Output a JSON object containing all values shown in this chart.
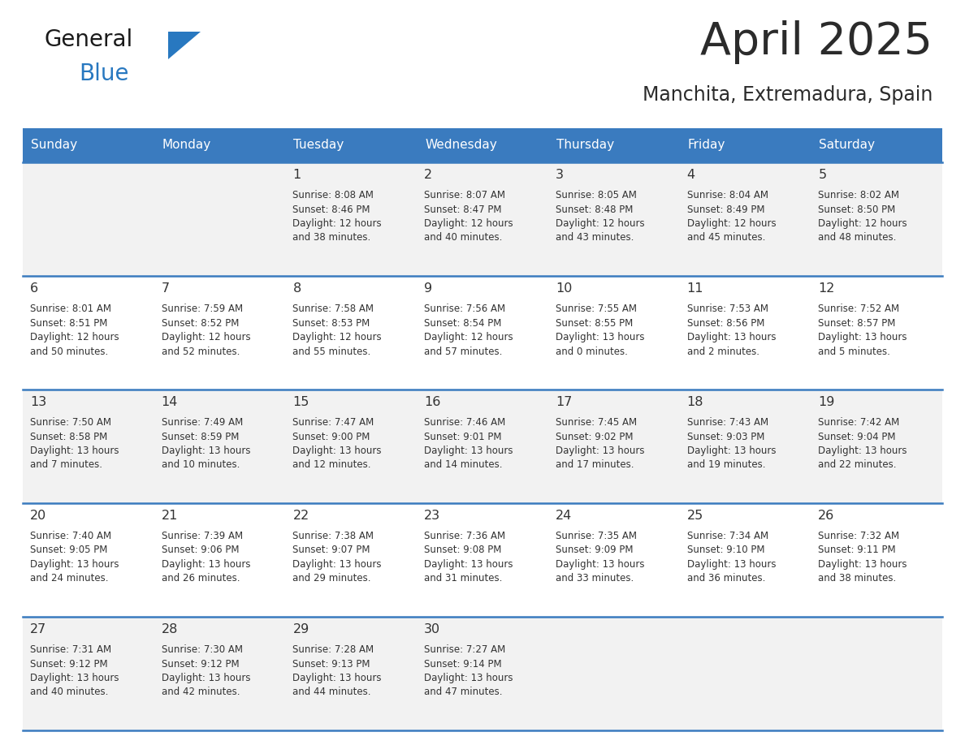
{
  "title": "April 2025",
  "subtitle": "Manchita, Extremadura, Spain",
  "header_bg_color": "#3a7bbf",
  "header_text_color": "#ffffff",
  "day_names": [
    "Sunday",
    "Monday",
    "Tuesday",
    "Wednesday",
    "Thursday",
    "Friday",
    "Saturday"
  ],
  "row_bg_even": "#f2f2f2",
  "row_bg_odd": "#ffffff",
  "cell_text_color": "#333333",
  "date_text_color": "#333333",
  "title_color": "#2b2b2b",
  "subtitle_color": "#2b2b2b",
  "divider_color": "#3a7bbf",
  "calendar": [
    [
      {
        "day": null,
        "info": null
      },
      {
        "day": null,
        "info": null
      },
      {
        "day": "1",
        "info": "Sunrise: 8:08 AM\nSunset: 8:46 PM\nDaylight: 12 hours\nand 38 minutes."
      },
      {
        "day": "2",
        "info": "Sunrise: 8:07 AM\nSunset: 8:47 PM\nDaylight: 12 hours\nand 40 minutes."
      },
      {
        "day": "3",
        "info": "Sunrise: 8:05 AM\nSunset: 8:48 PM\nDaylight: 12 hours\nand 43 minutes."
      },
      {
        "day": "4",
        "info": "Sunrise: 8:04 AM\nSunset: 8:49 PM\nDaylight: 12 hours\nand 45 minutes."
      },
      {
        "day": "5",
        "info": "Sunrise: 8:02 AM\nSunset: 8:50 PM\nDaylight: 12 hours\nand 48 minutes."
      }
    ],
    [
      {
        "day": "6",
        "info": "Sunrise: 8:01 AM\nSunset: 8:51 PM\nDaylight: 12 hours\nand 50 minutes."
      },
      {
        "day": "7",
        "info": "Sunrise: 7:59 AM\nSunset: 8:52 PM\nDaylight: 12 hours\nand 52 minutes."
      },
      {
        "day": "8",
        "info": "Sunrise: 7:58 AM\nSunset: 8:53 PM\nDaylight: 12 hours\nand 55 minutes."
      },
      {
        "day": "9",
        "info": "Sunrise: 7:56 AM\nSunset: 8:54 PM\nDaylight: 12 hours\nand 57 minutes."
      },
      {
        "day": "10",
        "info": "Sunrise: 7:55 AM\nSunset: 8:55 PM\nDaylight: 13 hours\nand 0 minutes."
      },
      {
        "day": "11",
        "info": "Sunrise: 7:53 AM\nSunset: 8:56 PM\nDaylight: 13 hours\nand 2 minutes."
      },
      {
        "day": "12",
        "info": "Sunrise: 7:52 AM\nSunset: 8:57 PM\nDaylight: 13 hours\nand 5 minutes."
      }
    ],
    [
      {
        "day": "13",
        "info": "Sunrise: 7:50 AM\nSunset: 8:58 PM\nDaylight: 13 hours\nand 7 minutes."
      },
      {
        "day": "14",
        "info": "Sunrise: 7:49 AM\nSunset: 8:59 PM\nDaylight: 13 hours\nand 10 minutes."
      },
      {
        "day": "15",
        "info": "Sunrise: 7:47 AM\nSunset: 9:00 PM\nDaylight: 13 hours\nand 12 minutes."
      },
      {
        "day": "16",
        "info": "Sunrise: 7:46 AM\nSunset: 9:01 PM\nDaylight: 13 hours\nand 14 minutes."
      },
      {
        "day": "17",
        "info": "Sunrise: 7:45 AM\nSunset: 9:02 PM\nDaylight: 13 hours\nand 17 minutes."
      },
      {
        "day": "18",
        "info": "Sunrise: 7:43 AM\nSunset: 9:03 PM\nDaylight: 13 hours\nand 19 minutes."
      },
      {
        "day": "19",
        "info": "Sunrise: 7:42 AM\nSunset: 9:04 PM\nDaylight: 13 hours\nand 22 minutes."
      }
    ],
    [
      {
        "day": "20",
        "info": "Sunrise: 7:40 AM\nSunset: 9:05 PM\nDaylight: 13 hours\nand 24 minutes."
      },
      {
        "day": "21",
        "info": "Sunrise: 7:39 AM\nSunset: 9:06 PM\nDaylight: 13 hours\nand 26 minutes."
      },
      {
        "day": "22",
        "info": "Sunrise: 7:38 AM\nSunset: 9:07 PM\nDaylight: 13 hours\nand 29 minutes."
      },
      {
        "day": "23",
        "info": "Sunrise: 7:36 AM\nSunset: 9:08 PM\nDaylight: 13 hours\nand 31 minutes."
      },
      {
        "day": "24",
        "info": "Sunrise: 7:35 AM\nSunset: 9:09 PM\nDaylight: 13 hours\nand 33 minutes."
      },
      {
        "day": "25",
        "info": "Sunrise: 7:34 AM\nSunset: 9:10 PM\nDaylight: 13 hours\nand 36 minutes."
      },
      {
        "day": "26",
        "info": "Sunrise: 7:32 AM\nSunset: 9:11 PM\nDaylight: 13 hours\nand 38 minutes."
      }
    ],
    [
      {
        "day": "27",
        "info": "Sunrise: 7:31 AM\nSunset: 9:12 PM\nDaylight: 13 hours\nand 40 minutes."
      },
      {
        "day": "28",
        "info": "Sunrise: 7:30 AM\nSunset: 9:12 PM\nDaylight: 13 hours\nand 42 minutes."
      },
      {
        "day": "29",
        "info": "Sunrise: 7:28 AM\nSunset: 9:13 PM\nDaylight: 13 hours\nand 44 minutes."
      },
      {
        "day": "30",
        "info": "Sunrise: 7:27 AM\nSunset: 9:14 PM\nDaylight: 13 hours\nand 47 minutes."
      },
      {
        "day": null,
        "info": null
      },
      {
        "day": null,
        "info": null
      },
      {
        "day": null,
        "info": null
      }
    ]
  ],
  "logo_general_color": "#1a1a1a",
  "logo_blue_color": "#2878c0",
  "logo_triangle_color": "#2878c0",
  "fig_width": 11.88,
  "fig_height": 9.18,
  "dpi": 100
}
